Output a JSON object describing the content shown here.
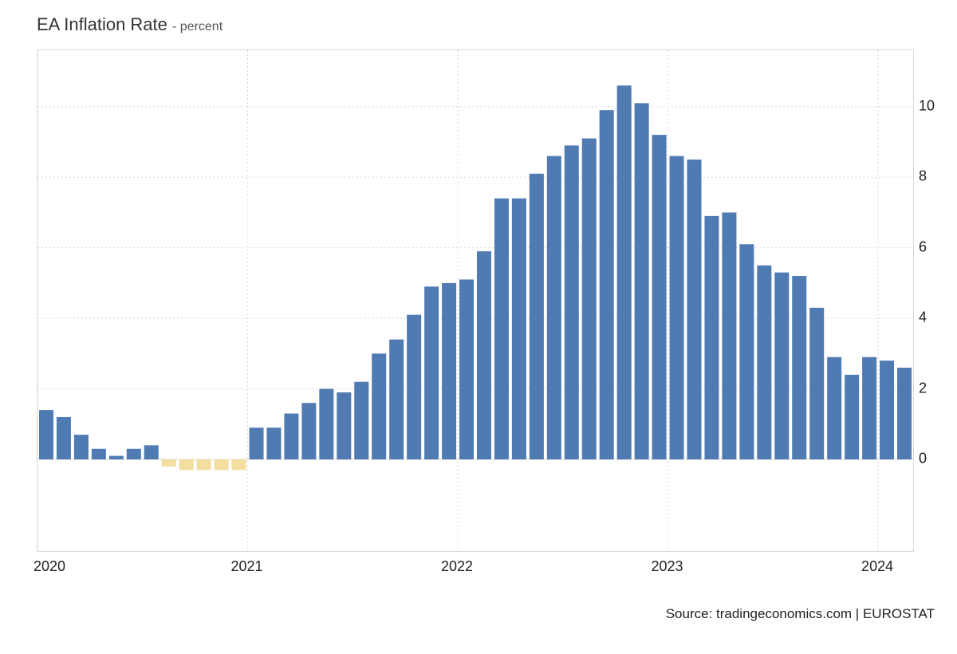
{
  "title": {
    "main": "EA Inflation Rate ",
    "unit": "- percent",
    "fontsize_main": 22,
    "fontsize_unit": 16,
    "color": "#333333"
  },
  "source": "Source: tradingeconomics.com | EUROSTAT",
  "chart": {
    "type": "bar",
    "positive_color": "#4f7ab2",
    "negative_color": "#f3de9f",
    "border_color": "#d9d9d9",
    "grid_color": "#d9d9d9",
    "grid_dash": "2,3",
    "background_color": "#ffffff",
    "axis_font_size": 18,
    "bar_width_ratio": 0.82,
    "ylim": [
      -2.6,
      11.6
    ],
    "yticks": [
      0,
      2,
      4,
      6,
      8,
      10
    ],
    "xticks": [
      {
        "label": "2020",
        "index": 0
      },
      {
        "label": "2021",
        "index": 12
      },
      {
        "label": "2022",
        "index": 24
      },
      {
        "label": "2023",
        "index": 36
      },
      {
        "label": "2024",
        "index": 48
      }
    ],
    "values": [
      1.4,
      1.2,
      0.7,
      0.3,
      0.1,
      0.3,
      0.4,
      -0.2,
      -0.3,
      -0.3,
      -0.3,
      -0.3,
      0.9,
      0.9,
      1.3,
      1.6,
      2.0,
      1.9,
      2.2,
      3.0,
      3.4,
      4.1,
      4.9,
      5.0,
      5.1,
      5.9,
      7.4,
      7.4,
      8.1,
      8.6,
      8.9,
      9.1,
      9.9,
      10.6,
      10.1,
      9.2,
      8.6,
      8.5,
      6.9,
      7.0,
      6.1,
      5.5,
      5.3,
      5.2,
      4.3,
      2.9,
      2.4,
      2.9,
      2.8,
      2.6
    ]
  }
}
